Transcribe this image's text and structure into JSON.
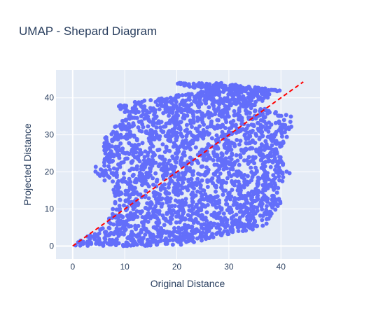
{
  "chart_data": {
    "type": "scatter",
    "title": "UMAP - Shepard Diagram",
    "xlabel": "Original Distance",
    "ylabel": "Projected Distance",
    "xlim": [
      -3.2,
      47.5
    ],
    "ylim": [
      -3.5,
      47.5
    ],
    "xticks": [
      0,
      10,
      20,
      30,
      40
    ],
    "yticks": [
      0,
      10,
      20,
      30,
      40
    ],
    "grid": true,
    "colors": {
      "background": "#e5ecf6",
      "grid": "#ffffff",
      "points": "#636efa",
      "reference_line": "#ff0000",
      "text": "#2a3f5f"
    },
    "series": [
      {
        "type": "scatter",
        "description_values": "dense point cloud; approx. bounds per projected-distance level",
        "envelope": [
          {
            "y": 0,
            "x_min": 0,
            "x_max": 21
          },
          {
            "y": 2,
            "x_min": 2,
            "x_max": 26
          },
          {
            "y": 5,
            "x_min": 6,
            "x_max": 37
          },
          {
            "y": 8,
            "x_min": 7,
            "x_max": 38
          },
          {
            "y": 11,
            "x_min": 8,
            "x_max": 40
          },
          {
            "y": 14,
            "x_min": 8,
            "x_max": 40
          },
          {
            "y": 17,
            "x_min": 7,
            "x_max": 40
          },
          {
            "y": 20,
            "x_min": 3,
            "x_max": 42
          },
          {
            "y": 23,
            "x_min": 6,
            "x_max": 40
          },
          {
            "y": 26,
            "x_min": 6,
            "x_max": 40
          },
          {
            "y": 29,
            "x_min": 6,
            "x_max": 41
          },
          {
            "y": 32,
            "x_min": 8,
            "x_max": 42
          },
          {
            "y": 35,
            "x_min": 10,
            "x_max": 42
          },
          {
            "y": 38,
            "x_min": 8,
            "x_max": 35
          },
          {
            "y": 42,
            "x_min": 26,
            "x_max": 40
          },
          {
            "y": 44,
            "x_min": 19,
            "x_max": 29
          }
        ]
      },
      {
        "type": "line",
        "style": "dashed",
        "x": [
          0,
          44.3
        ],
        "y": [
          0,
          44.3
        ]
      }
    ]
  }
}
